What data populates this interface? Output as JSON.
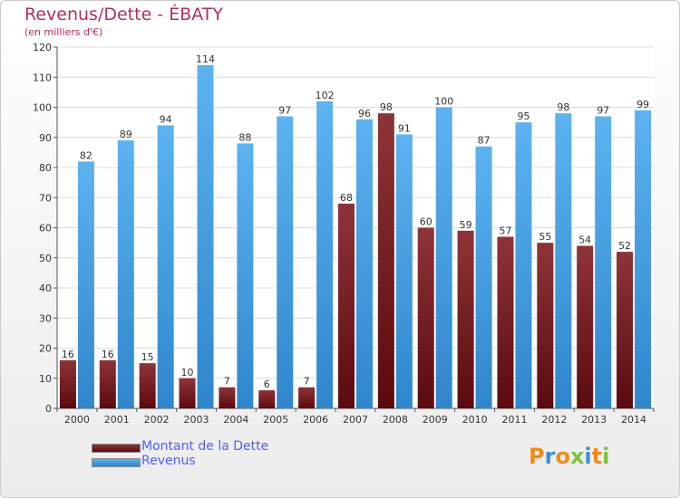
{
  "header": {
    "title": "Revenus/Dette - ÉBATY",
    "subtitle": "(en milliers d'€)"
  },
  "legend": {
    "items": [
      {
        "label": "Montant de la Dette",
        "color": "#7a1f22"
      },
      {
        "label": "Revenus",
        "color": "#4aa3e8"
      }
    ]
  },
  "logo": {
    "text": "Proxiti",
    "letters": [
      "P",
      "r",
      "o",
      "x",
      "i",
      "t",
      "i"
    ],
    "colors": [
      "#f08a1c",
      "#3a8fd8",
      "#f08a1c",
      "#7cc242",
      "#3a8fd8",
      "#f08a1c",
      "#7cc242"
    ]
  },
  "chart_data": {
    "type": "bar",
    "title": "Revenus/Dette - ÉBATY",
    "subtitle": "(en milliers d'€)",
    "categories": [
      "2000",
      "2001",
      "2002",
      "2003",
      "2004",
      "2005",
      "2006",
      "2007",
      "2008",
      "2009",
      "2010",
      "2011",
      "2012",
      "2013",
      "2014"
    ],
    "series": [
      {
        "name": "Montant de la Dette",
        "color": "#7a1f22",
        "values": [
          16,
          16,
          15,
          10,
          7,
          6,
          7,
          68,
          98,
          60,
          59,
          57,
          55,
          54,
          52
        ]
      },
      {
        "name": "Revenus",
        "color": "#4aa3e8",
        "values": [
          82,
          89,
          94,
          114,
          88,
          97,
          102,
          96,
          91,
          100,
          87,
          95,
          98,
          97,
          99
        ]
      }
    ],
    "ylim": [
      0,
      120
    ],
    "yticks": [
      0,
      10,
      20,
      30,
      40,
      50,
      60,
      70,
      80,
      90,
      100,
      110,
      120
    ],
    "grid": true,
    "legend_position": "bottom-left"
  }
}
